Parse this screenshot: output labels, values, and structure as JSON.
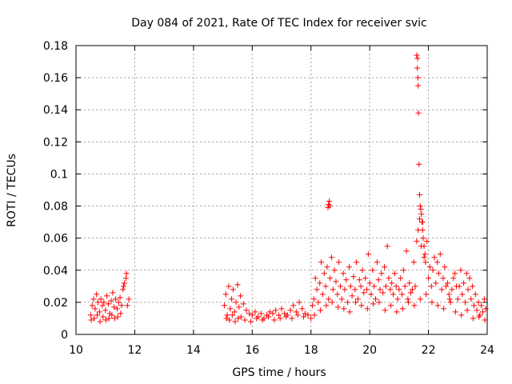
{
  "chart_data": {
    "type": "scatter",
    "title": "Day 084 of 2021, Rate Of TEC Index for receiver svic",
    "xlabel": "GPS time / hours",
    "ylabel": "ROTI / TECUs",
    "xlim": [
      10,
      24
    ],
    "ylim": [
      0,
      0.18
    ],
    "grid": true,
    "x_ticks": [
      10,
      12,
      14,
      16,
      18,
      20,
      22,
      24
    ],
    "x_tick_labels": [
      "10",
      "12",
      "14",
      "16",
      "18",
      "20",
      "22",
      "24"
    ],
    "y_ticks": [
      0,
      0.02,
      0.04,
      0.06,
      0.08,
      0.1,
      0.12,
      0.14,
      0.16,
      0.18
    ],
    "y_tick_labels": [
      "0",
      "0.02",
      "0.04",
      "0.06",
      "0.08",
      "0.1",
      "0.12",
      "0.14",
      "0.16",
      "0.18"
    ],
    "marker": "+",
    "color": "#ff0000",
    "series": [
      {
        "name": "ROTI",
        "x": [
          10.5,
          10.55,
          10.6,
          10.65,
          10.7,
          10.75,
          10.8,
          10.85,
          10.9,
          10.95,
          11.0,
          11.05,
          11.1,
          11.15,
          11.2,
          11.25,
          11.3,
          11.35,
          11.4,
          11.45,
          11.5,
          11.55,
          11.6,
          11.65,
          11.7,
          11.75,
          11.8,
          10.52,
          10.62,
          10.72,
          10.82,
          10.92,
          11.02,
          11.12,
          11.22,
          11.32,
          11.42,
          11.52,
          11.62,
          11.72,
          15.05,
          15.1,
          15.15,
          15.2,
          15.25,
          15.3,
          15.35,
          15.4,
          15.45,
          15.5,
          15.55,
          15.6,
          15.7,
          15.8,
          15.9,
          16.0,
          16.1,
          16.2,
          16.3,
          16.4,
          16.5,
          16.6,
          16.7,
          16.8,
          16.9,
          17.0,
          17.1,
          17.2,
          17.3,
          17.4,
          17.5,
          17.6,
          17.7,
          17.8,
          17.9,
          15.12,
          15.22,
          15.32,
          15.42,
          15.52,
          15.62,
          15.75,
          15.95,
          16.15,
          16.35,
          16.55,
          16.75,
          16.95,
          17.15,
          17.35,
          17.55,
          17.75,
          18.0,
          18.05,
          18.1,
          18.15,
          18.2,
          18.25,
          18.3,
          18.35,
          18.4,
          18.45,
          18.5,
          18.55,
          18.6,
          18.65,
          18.7,
          18.75,
          18.8,
          18.85,
          18.9,
          18.95,
          19.0,
          19.05,
          19.1,
          19.15,
          19.2,
          19.25,
          19.3,
          19.35,
          19.4,
          19.45,
          19.5,
          19.55,
          19.6,
          19.65,
          19.7,
          19.75,
          19.8,
          19.85,
          19.9,
          19.95,
          20.0,
          20.05,
          20.1,
          20.15,
          20.2,
          20.25,
          20.3,
          20.35,
          20.4,
          20.45,
          20.5,
          20.55,
          20.6,
          20.65,
          20.7,
          20.75,
          20.8,
          20.85,
          20.9,
          20.95,
          21.0,
          21.05,
          21.1,
          21.15,
          21.2,
          21.25,
          21.3,
          21.35,
          21.4,
          21.45,
          21.5,
          21.55,
          21.6,
          21.65,
          21.7,
          21.75,
          21.8,
          21.85,
          21.9,
          21.95,
          22.0,
          22.05,
          22.1,
          22.15,
          22.2,
          22.25,
          22.3,
          22.35,
          22.4,
          22.45,
          22.5,
          22.55,
          22.6,
          22.65,
          22.7,
          22.75,
          22.8,
          22.85,
          22.9,
          22.95,
          23.0,
          23.05,
          23.1,
          23.15,
          23.2,
          23.25,
          23.3,
          23.35,
          23.4,
          23.45,
          23.5,
          23.55,
          23.6,
          23.65,
          23.7,
          23.75,
          23.8,
          23.85,
          23.9,
          23.95,
          18.12,
          18.32,
          18.52,
          18.72,
          18.92,
          19.12,
          19.32,
          19.52,
          19.72,
          19.92,
          20.12,
          20.32,
          20.52,
          20.72,
          20.92,
          21.12,
          21.32,
          21.52,
          21.72,
          21.92,
          22.12,
          22.32,
          22.52,
          22.72,
          22.92,
          23.12,
          23.32,
          23.52,
          23.72,
          23.92,
          18.58,
          18.6,
          18.62,
          18.64,
          21.6,
          21.62,
          21.63,
          21.64,
          21.65,
          21.66,
          21.68,
          21.7,
          21.72,
          21.74,
          21.76,
          21.78,
          21.8,
          21.82,
          21.85,
          21.88
        ],
        "y": [
          0.012,
          0.018,
          0.022,
          0.016,
          0.025,
          0.02,
          0.014,
          0.022,
          0.018,
          0.02,
          0.015,
          0.024,
          0.019,
          0.013,
          0.021,
          0.026,
          0.017,
          0.022,
          0.016,
          0.02,
          0.023,
          0.018,
          0.028,
          0.032,
          0.035,
          0.018,
          0.022,
          0.009,
          0.01,
          0.012,
          0.008,
          0.011,
          0.009,
          0.01,
          0.012,
          0.01,
          0.011,
          0.013,
          0.03,
          0.038,
          0.018,
          0.025,
          0.012,
          0.03,
          0.016,
          0.022,
          0.028,
          0.014,
          0.02,
          0.031,
          0.017,
          0.024,
          0.019,
          0.015,
          0.013,
          0.012,
          0.014,
          0.011,
          0.013,
          0.01,
          0.012,
          0.014,
          0.013,
          0.015,
          0.012,
          0.016,
          0.013,
          0.012,
          0.015,
          0.018,
          0.014,
          0.02,
          0.016,
          0.013,
          0.012,
          0.01,
          0.009,
          0.012,
          0.008,
          0.01,
          0.011,
          0.009,
          0.008,
          0.01,
          0.009,
          0.011,
          0.009,
          0.01,
          0.011,
          0.01,
          0.012,
          0.011,
          0.01,
          0.018,
          0.022,
          0.035,
          0.028,
          0.02,
          0.032,
          0.045,
          0.025,
          0.038,
          0.03,
          0.042,
          0.022,
          0.035,
          0.048,
          0.028,
          0.04,
          0.033,
          0.025,
          0.045,
          0.03,
          0.022,
          0.038,
          0.028,
          0.034,
          0.02,
          0.042,
          0.03,
          0.024,
          0.036,
          0.028,
          0.045,
          0.022,
          0.034,
          0.03,
          0.04,
          0.026,
          0.035,
          0.028,
          0.05,
          0.032,
          0.025,
          0.04,
          0.03,
          0.022,
          0.045,
          0.034,
          0.028,
          0.038,
          0.026,
          0.042,
          0.03,
          0.055,
          0.035,
          0.028,
          0.032,
          0.025,
          0.038,
          0.03,
          0.022,
          0.028,
          0.035,
          0.025,
          0.04,
          0.03,
          0.052,
          0.022,
          0.032,
          0.026,
          0.028,
          0.045,
          0.03,
          0.058,
          0.065,
          0.072,
          0.055,
          0.07,
          0.048,
          0.045,
          0.058,
          0.035,
          0.042,
          0.03,
          0.04,
          0.048,
          0.032,
          0.045,
          0.038,
          0.05,
          0.028,
          0.035,
          0.042,
          0.03,
          0.032,
          0.025,
          0.02,
          0.028,
          0.035,
          0.038,
          0.03,
          0.022,
          0.03,
          0.04,
          0.025,
          0.032,
          0.02,
          0.038,
          0.028,
          0.035,
          0.022,
          0.03,
          0.018,
          0.025,
          0.015,
          0.02,
          0.012,
          0.018,
          0.014,
          0.022,
          0.016,
          0.012,
          0.015,
          0.018,
          0.02,
          0.017,
          0.016,
          0.014,
          0.02,
          0.018,
          0.016,
          0.019,
          0.02,
          0.015,
          0.018,
          0.014,
          0.016,
          0.02,
          0.018,
          0.022,
          0.025,
          0.02,
          0.018,
          0.016,
          0.022,
          0.014,
          0.012,
          0.015,
          0.01,
          0.011,
          0.009,
          0.079,
          0.081,
          0.083,
          0.08,
          0.174,
          0.166,
          0.172,
          0.16,
          0.155,
          0.138,
          0.106,
          0.087,
          0.08,
          0.078,
          0.075,
          0.07,
          0.065,
          0.06,
          0.055,
          0.05
        ]
      }
    ]
  }
}
